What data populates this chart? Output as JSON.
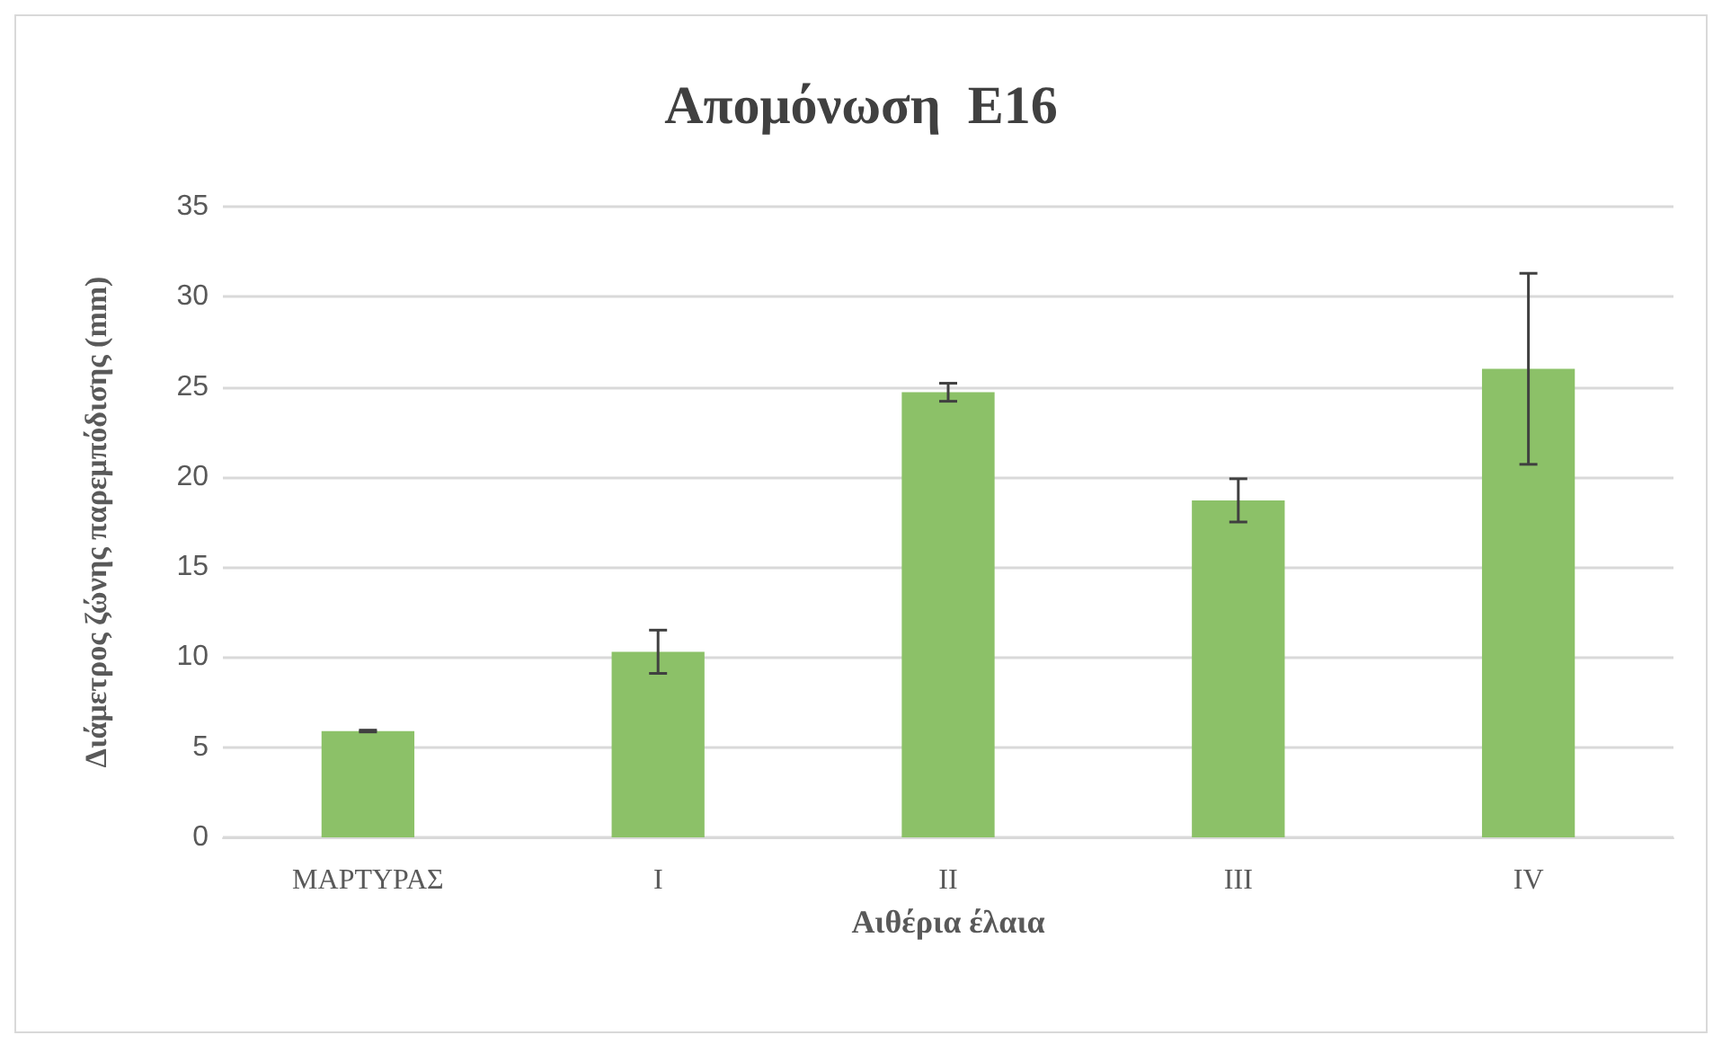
{
  "chart_data": {
    "type": "bar",
    "title": "Απομόνωση  Ε16",
    "xlabel": "Αιθέρια έλαια",
    "ylabel": "Διάμετρος ζώνης παρεμπόδισης (mm)",
    "categories": [
      "ΜΑΡΤΥΡΑΣ",
      "I",
      "II",
      "III",
      "IV"
    ],
    "values": [
      5.9,
      10.3,
      24.7,
      18.7,
      26.0
    ],
    "errors": [
      0.05,
      1.2,
      0.5,
      1.2,
      5.3
    ],
    "color": "#8cc168",
    "ylim": [
      0,
      35
    ],
    "yticks": [
      0,
      5,
      10,
      15,
      20,
      25,
      30,
      35
    ],
    "grid": "y"
  }
}
